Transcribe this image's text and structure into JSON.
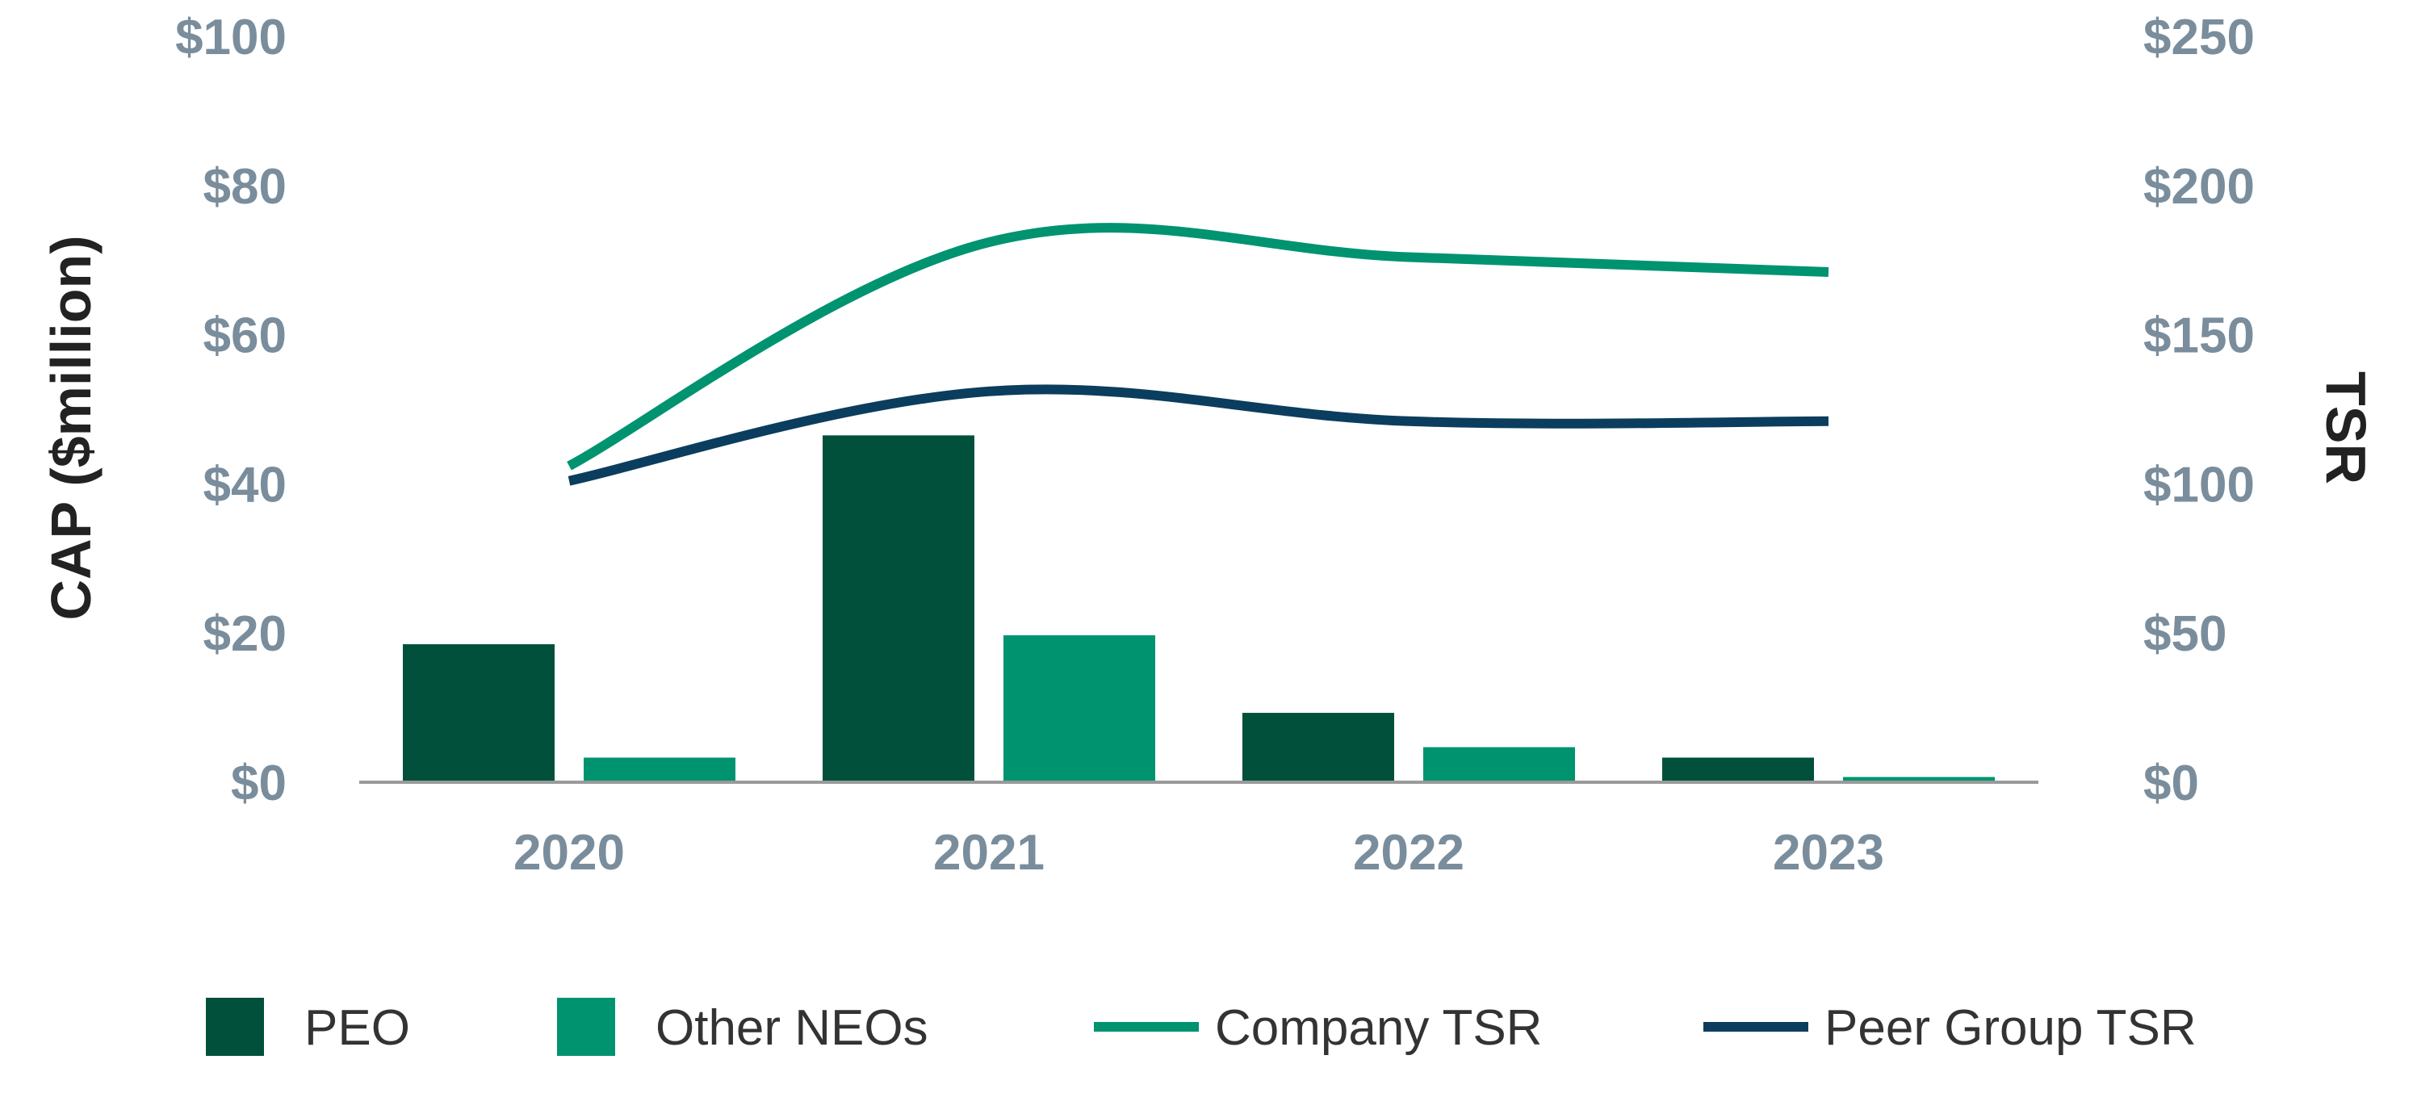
{
  "chart_data": {
    "type": "bar",
    "title": "",
    "categories": [
      "2020",
      "2021",
      "2022",
      "2023"
    ],
    "xlabel": "",
    "ylabel": "CAP ($million)",
    "y2label": "TSR",
    "ylim": [
      0,
      100
    ],
    "y2lim": [
      0,
      250
    ],
    "yticks": [
      "$0",
      "$20",
      "$40",
      "$60",
      "$80",
      "$100"
    ],
    "y2ticks": [
      "$0",
      "$50",
      "$100",
      "$150",
      "$200",
      "$250"
    ],
    "grid": false,
    "legend_position": "bottom",
    "series": [
      {
        "name": "PEO",
        "kind": "bar",
        "axis": "left",
        "color": "#00503c",
        "values": [
          18.5,
          46.5,
          9.3,
          3.3
        ]
      },
      {
        "name": "Other NEOs",
        "kind": "bar",
        "axis": "left",
        "color": "#009370",
        "values": [
          3.3,
          19.7,
          4.7,
          0.7
        ]
      },
      {
        "name": "Company TSR",
        "kind": "line",
        "axis": "right",
        "color": "#009370",
        "values": [
          106,
          181,
          176,
          171
        ]
      },
      {
        "name": "Peer Group TSR",
        "kind": "line",
        "axis": "right",
        "color": "#0b3d5e",
        "values": [
          101,
          131,
          121,
          121
        ]
      }
    ]
  }
}
